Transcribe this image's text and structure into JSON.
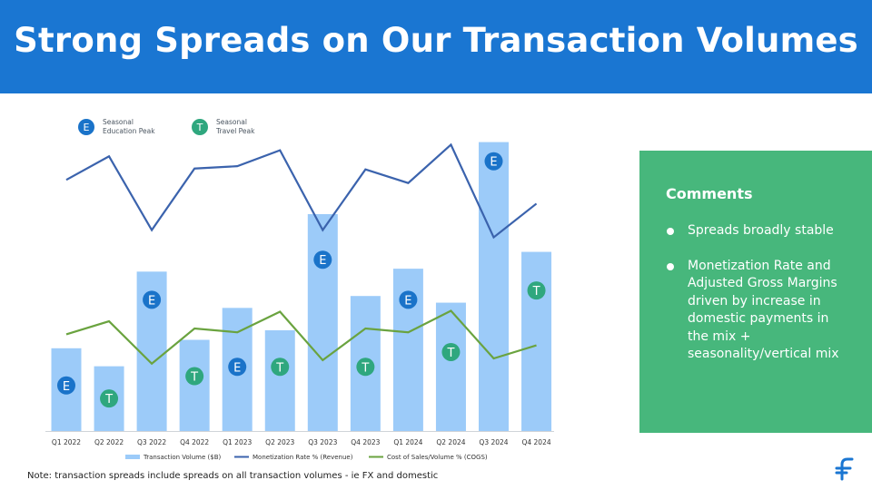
{
  "header": {
    "title": "Strong Spreads on Our Transaction Volumes"
  },
  "badges": {
    "E": {
      "letter": "E",
      "label": "Seasonal Education Peak",
      "line1": "Seasonal",
      "line2": "Education Peak",
      "color": "#1a73c9"
    },
    "T": {
      "letter": "T",
      "label": "Seasonal Travel Peak",
      "line1": "Seasonal",
      "line2": "Travel Peak",
      "color": "#2fa77e"
    }
  },
  "colors": {
    "bar": "#9ccbf9",
    "revenue_line": "#3b63ad",
    "cogs_line": "#6aa33f",
    "header": "#1a76d2",
    "comment_bg": "#47b77c"
  },
  "chart_data": {
    "type": "bar",
    "categories": [
      "Q1 2022",
      "Q2 2022",
      "Q3 2022",
      "Q4 2022",
      "Q1 2023",
      "Q2 2023",
      "Q3 2023",
      "Q4 2023",
      "Q1 2024",
      "Q2 2024",
      "Q3 2024",
      "Q4 2024"
    ],
    "series": [
      {
        "name": "Transaction Volume ($B)",
        "type": "bar",
        "values": [
          28.5,
          22.3,
          54.9,
          31.4,
          42.4,
          34.7,
          74.7,
          46.5,
          55.9,
          44.2,
          99.5,
          61.7
        ]
      },
      {
        "name": "Monetization Rate % (Revenue)",
        "type": "line",
        "values": [
          86.5,
          94.6,
          69.2,
          90.4,
          91.2,
          96.7,
          69.2,
          90.1,
          85.4,
          98.6,
          66.7,
          78.3
        ]
      },
      {
        "name": "Cost of Sales/Volume % (COGS)",
        "type": "line",
        "values": [
          33.3,
          37.8,
          23.2,
          35.3,
          34.0,
          41.1,
          24.4,
          35.3,
          34.0,
          41.4,
          25.0,
          29.5
        ]
      }
    ],
    "markers": [
      {
        "category": "Q1 2022",
        "badge": "E",
        "level": 15.7
      },
      {
        "category": "Q2 2022",
        "badge": "T",
        "level": 11.2
      },
      {
        "category": "Q3 2022",
        "badge": "E",
        "level": 45.2
      },
      {
        "category": "Q4 2022",
        "badge": "T",
        "level": 18.9
      },
      {
        "category": "Q1 2023",
        "badge": "E",
        "level": 22.1
      },
      {
        "category": "Q2 2023",
        "badge": "T",
        "level": 22.1
      },
      {
        "category": "Q3 2023",
        "badge": "E",
        "level": 59.0
      },
      {
        "category": "Q4 2023",
        "badge": "T",
        "level": 22.1
      },
      {
        "category": "Q1 2024",
        "badge": "E",
        "level": 45.2
      },
      {
        "category": "Q2 2024",
        "badge": "T",
        "level": 27.2
      },
      {
        "category": "Q3 2024",
        "badge": "E",
        "level": 92.9
      },
      {
        "category": "Q4 2024",
        "badge": "T",
        "level": 48.4
      }
    ],
    "ylim": [
      0,
      100
    ],
    "legend_position": "bottom",
    "grid": false
  },
  "comments": {
    "title": "Comments",
    "items": [
      "Spreads broadly stable",
      "Monetization Rate and Adjusted Gross Margins driven by increase in domestic payments in the mix + seasonality/vertical mix"
    ]
  },
  "footnote": "Note: transaction spreads include spreads on all transaction volumes - ie FX and domestic",
  "logo": {
    "icon": "flywire-logo-icon"
  }
}
